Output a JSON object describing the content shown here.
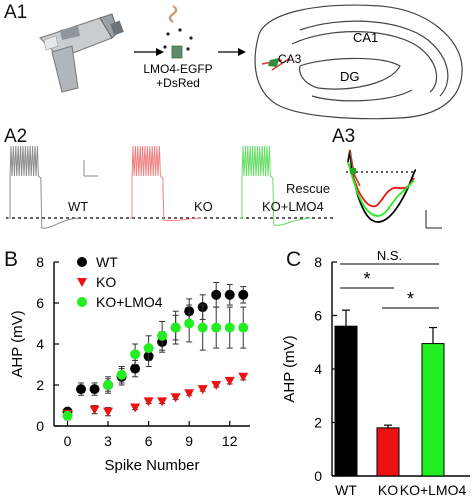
{
  "panels": {
    "a1": "A1",
    "a2": "A2",
    "a3": "A3",
    "b": "B",
    "c": "C"
  },
  "a1": {
    "construct_line1": "LMO4-EGFP",
    "construct_line2": "+DsRed",
    "region_ca3": "CA3",
    "region_ca1": "CA1",
    "region_dg": "DG"
  },
  "a2": {
    "trace_labels": [
      "WT",
      "KO",
      "Rescue",
      "KO+LMO4"
    ],
    "colors": {
      "wt": "#8c8c8c",
      "ko": "#f08080",
      "rescue": "#66dd66"
    }
  },
  "colors": {
    "wt": "#000000",
    "ko": "#ee1111",
    "rescue": "#22ee22"
  },
  "chart_data": [
    {
      "type": "scatter",
      "panel": "B",
      "xlabel": "Spike Number",
      "ylabel": "AHP (mV)",
      "xlim": [
        -1,
        13.5
      ],
      "ylim": [
        0,
        8
      ],
      "xticks": [
        0,
        3,
        6,
        9,
        12
      ],
      "yticks": [
        0,
        2,
        4,
        6,
        8
      ],
      "legend": "top-left",
      "series": [
        {
          "name": "WT",
          "color": "#000000",
          "shape": "circle",
          "points": [
            {
              "x": 0,
              "y": 0.7,
              "err": 0.15
            },
            {
              "x": 1,
              "y": 1.8,
              "err": 0.3
            },
            {
              "x": 2,
              "y": 1.8,
              "err": 0.3
            },
            {
              "x": 3,
              "y": 2.0,
              "err": 0.3
            },
            {
              "x": 4,
              "y": 2.4,
              "err": 0.4
            },
            {
              "x": 5,
              "y": 2.8,
              "err": 0.4
            },
            {
              "x": 6,
              "y": 3.4,
              "err": 0.5
            },
            {
              "x": 7,
              "y": 4.1,
              "err": 0.5
            },
            {
              "x": 8,
              "y": 4.8,
              "err": 0.6
            },
            {
              "x": 9,
              "y": 5.6,
              "err": 0.6
            },
            {
              "x": 10,
              "y": 5.8,
              "err": 0.6
            },
            {
              "x": 11,
              "y": 6.4,
              "err": 0.6
            },
            {
              "x": 12,
              "y": 6.4,
              "err": 0.5
            },
            {
              "x": 13,
              "y": 6.4,
              "err": 0.4
            }
          ]
        },
        {
          "name": "KO",
          "color": "#ee1111",
          "shape": "triangle",
          "points": [
            {
              "x": 0,
              "y": 0.6,
              "err": 0.15
            },
            {
              "x": 2,
              "y": 0.8,
              "err": 0.2
            },
            {
              "x": 3,
              "y": 0.7,
              "err": 0.2
            },
            {
              "x": 5,
              "y": 0.9,
              "err": 0.1
            },
            {
              "x": 6,
              "y": 1.2,
              "err": 0.1
            },
            {
              "x": 7,
              "y": 1.2,
              "err": 0.1
            },
            {
              "x": 8,
              "y": 1.4,
              "err": 0.1
            },
            {
              "x": 9,
              "y": 1.6,
              "err": 0.1
            },
            {
              "x": 10,
              "y": 1.8,
              "err": 0.1
            },
            {
              "x": 11,
              "y": 2.0,
              "err": 0.1
            },
            {
              "x": 12,
              "y": 2.2,
              "err": 0.15
            },
            {
              "x": 13,
              "y": 2.4,
              "err": 0.15
            }
          ]
        },
        {
          "name": "KO+LMO4",
          "color": "#22ee22",
          "shape": "circle",
          "points": [
            {
              "x": 0,
              "y": 0.5,
              "err": 0.2
            },
            {
              "x": 3,
              "y": 2.0,
              "err": 0.4
            },
            {
              "x": 4,
              "y": 2.5,
              "err": 0.4
            },
            {
              "x": 5,
              "y": 3.5,
              "err": 0.5
            },
            {
              "x": 6,
              "y": 3.8,
              "err": 0.6
            },
            {
              "x": 7,
              "y": 4.4,
              "err": 0.7
            },
            {
              "x": 8,
              "y": 4.8,
              "err": 0.8
            },
            {
              "x": 9,
              "y": 5.0,
              "err": 0.9
            },
            {
              "x": 10,
              "y": 4.8,
              "err": 1.1
            },
            {
              "x": 11,
              "y": 4.8,
              "err": 1.0
            },
            {
              "x": 12,
              "y": 4.8,
              "err": 1.0
            },
            {
              "x": 13,
              "y": 4.8,
              "err": 1.0
            }
          ]
        }
      ]
    },
    {
      "type": "bar",
      "panel": "C",
      "ylabel": "AHP (mV)",
      "ylim": [
        0,
        8
      ],
      "yticks": [
        0,
        2,
        4,
        6,
        8
      ],
      "categories": [
        "WT",
        "KO",
        "KO+LMO4"
      ],
      "values": [
        5.6,
        1.8,
        4.95
      ],
      "errors": [
        0.6,
        0.1,
        0.6
      ],
      "colors": [
        "#000000",
        "#ee1111",
        "#22ee22"
      ],
      "annotations": [
        {
          "label": "N.S.",
          "between": [
            0,
            2
          ]
        },
        {
          "label": "*",
          "between": [
            0,
            1
          ]
        },
        {
          "label": "*",
          "between": [
            1,
            2
          ]
        }
      ]
    }
  ]
}
